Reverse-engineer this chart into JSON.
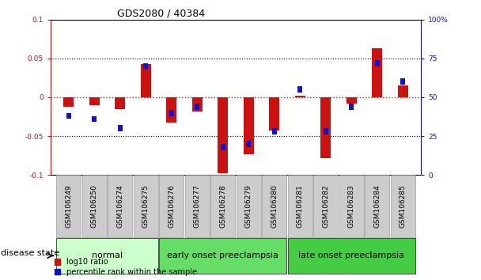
{
  "title": "GDS2080 / 40384",
  "samples": [
    "GSM106249",
    "GSM106250",
    "GSM106274",
    "GSM106275",
    "GSM106276",
    "GSM106277",
    "GSM106278",
    "GSM106279",
    "GSM106280",
    "GSM106281",
    "GSM106282",
    "GSM106283",
    "GSM106284",
    "GSM106285"
  ],
  "log10_ratio": [
    -0.012,
    -0.01,
    -0.015,
    0.043,
    -0.033,
    -0.018,
    -0.098,
    -0.073,
    -0.043,
    0.002,
    -0.078,
    -0.008,
    0.063,
    0.015
  ],
  "percentile_rank": [
    38,
    36,
    30,
    70,
    40,
    44,
    18,
    20,
    28,
    55,
    28,
    44,
    72,
    60
  ],
  "ylim": [
    -0.1,
    0.1
  ],
  "y2lim": [
    0,
    100
  ],
  "yticks": [
    -0.1,
    -0.05,
    0,
    0.05,
    0.1
  ],
  "y2ticks": [
    0,
    25,
    50,
    75,
    100
  ],
  "ytick_labels": [
    "-0.1",
    "-0.05",
    "0",
    "0.05",
    "0.1"
  ],
  "y2tick_labels": [
    "0",
    "25",
    "50",
    "75",
    "100%"
  ],
  "groups": [
    {
      "label": "normal",
      "start": 0,
      "end": 3,
      "color": "#ccffcc"
    },
    {
      "label": "early onset preeclampsia",
      "start": 4,
      "end": 8,
      "color": "#66dd66"
    },
    {
      "label": "late onset preeclampsia",
      "start": 9,
      "end": 13,
      "color": "#44cc44"
    }
  ],
  "bar_color_red": "#cc1111",
  "bar_color_blue": "#1111cc",
  "zero_line_color": "#cc1111",
  "dotted_line_color": "#000000",
  "bg_color": "#ffffff",
  "tick_label_bg": "#cccccc",
  "red_bar_width": 0.4,
  "blue_bar_width": 0.18,
  "legend_red": "log10 ratio",
  "legend_blue": "percentile rank within the sample",
  "disease_state_label": "disease state",
  "title_fontsize": 9,
  "tick_fontsize": 6.5,
  "label_fontsize": 8,
  "group_fontsize": 8
}
